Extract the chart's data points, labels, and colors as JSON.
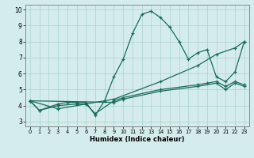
{
  "xlabel": "Humidex (Indice chaleur)",
  "bg_color": "#d4edec",
  "grid_color": "#aacfcf",
  "line_color": "#1a6b5a",
  "xlim": [
    -0.5,
    23.5
  ],
  "ylim": [
    2.7,
    10.3
  ],
  "yticks": [
    3,
    4,
    5,
    6,
    7,
    8,
    9,
    10
  ],
  "xticks": [
    0,
    1,
    2,
    3,
    4,
    5,
    6,
    7,
    8,
    9,
    10,
    11,
    12,
    13,
    14,
    15,
    16,
    17,
    18,
    19,
    20,
    21,
    22,
    23
  ],
  "series": [
    {
      "x": [
        0,
        1,
        3,
        4,
        5,
        6,
        7,
        8,
        9,
        10,
        11,
        12,
        13,
        14,
        15,
        16,
        17,
        18,
        19,
        20,
        21,
        22,
        23
      ],
      "y": [
        4.3,
        3.7,
        4.1,
        4.2,
        4.2,
        4.2,
        3.4,
        4.3,
        5.8,
        6.9,
        8.5,
        9.7,
        9.9,
        9.5,
        8.9,
        8.0,
        6.9,
        7.3,
        7.5,
        5.8,
        5.5,
        6.1,
        8.0
      ]
    },
    {
      "x": [
        0,
        3,
        9,
        14,
        18,
        20,
        22,
        23
      ],
      "y": [
        4.3,
        3.8,
        4.4,
        5.5,
        6.5,
        7.2,
        7.6,
        8.0
      ]
    },
    {
      "x": [
        0,
        1,
        3,
        5,
        6,
        7,
        9,
        10,
        14,
        18,
        19,
        20,
        21,
        22,
        23
      ],
      "y": [
        4.3,
        3.7,
        4.0,
        4.1,
        4.1,
        3.5,
        4.3,
        4.5,
        5.0,
        5.3,
        5.4,
        5.5,
        5.2,
        5.5,
        5.3
      ]
    },
    {
      "x": [
        0,
        9,
        10,
        14,
        18,
        20,
        21,
        22,
        23
      ],
      "y": [
        4.3,
        4.2,
        4.4,
        4.9,
        5.2,
        5.4,
        5.0,
        5.4,
        5.2
      ]
    }
  ]
}
